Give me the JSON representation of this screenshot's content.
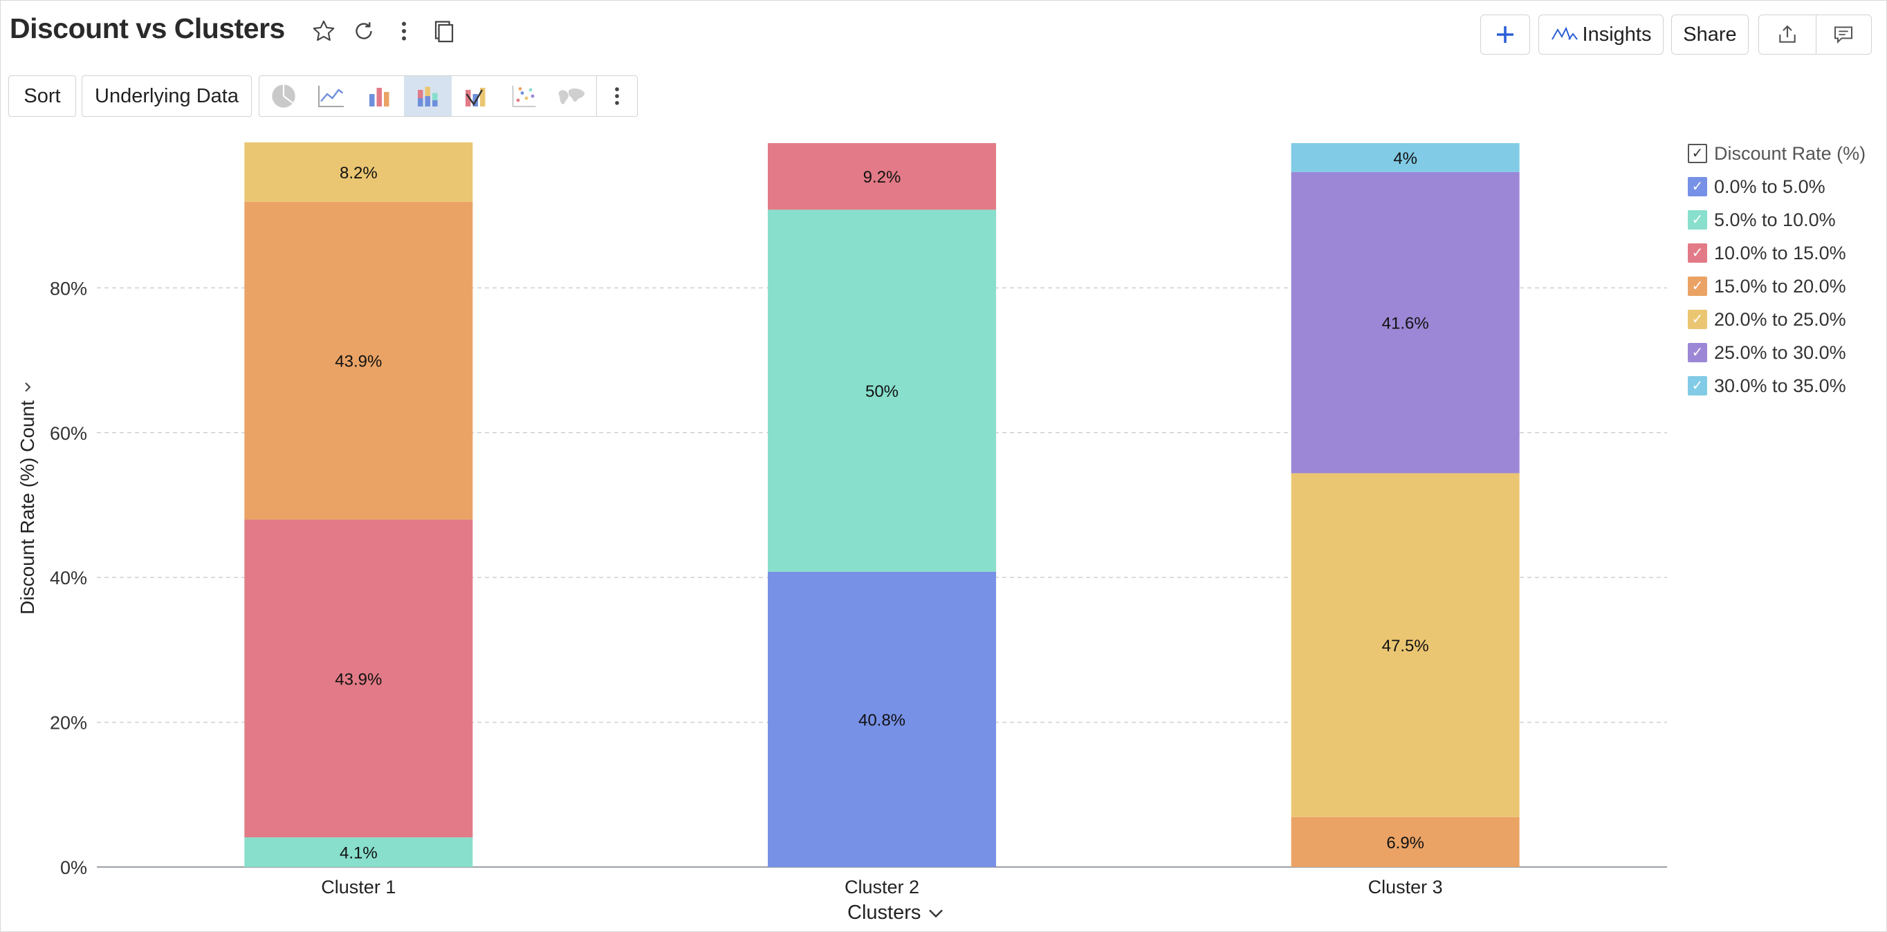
{
  "header": {
    "title": "Discount vs Clusters",
    "insights_label": "Insights",
    "share_label": "Share"
  },
  "toolbar": {
    "sort_label": "Sort",
    "underlying_label": "Underlying Data",
    "chart_types": [
      "pie-chart-icon",
      "line-chart-icon",
      "bar-chart-icon",
      "stacked-bar-chart-icon",
      "combo-chart-icon",
      "scatter-chart-icon",
      "map-chart-icon"
    ],
    "active_chart_type": "stacked-bar-chart-icon"
  },
  "legend": {
    "title": "Discount Rate (%)",
    "items": [
      {
        "label": "0.0% to 5.0%",
        "color": "#7791e6"
      },
      {
        "label": "5.0% to 10.0%",
        "color": "#88dfcc"
      },
      {
        "label": "10.0% to 15.0%",
        "color": "#e27b87"
      },
      {
        "label": "15.0% to 20.0%",
        "color": "#eaa365"
      },
      {
        "label": "20.0% to 25.0%",
        "color": "#ebc672"
      },
      {
        "label": "25.0% to 30.0%",
        "color": "#9c87d6"
      },
      {
        "label": "30.0% to 35.0%",
        "color": "#82cbe6"
      }
    ]
  },
  "chart_data": {
    "type": "bar",
    "stacked": true,
    "percent": true,
    "categories": [
      "Cluster 1",
      "Cluster 2",
      "Cluster 3"
    ],
    "xlabel": "Clusters",
    "ylabel": "Discount Rate (%) Count",
    "ylim": [
      0,
      100
    ],
    "yticks": [
      "0%",
      "20%",
      "40%",
      "60%",
      "80%"
    ],
    "grid": true,
    "legend_position": "right",
    "series": [
      {
        "name": "0.0% to 5.0%",
        "values": [
          0,
          40.8,
          0
        ]
      },
      {
        "name": "5.0% to 10.0%",
        "values": [
          4.1,
          50,
          0
        ]
      },
      {
        "name": "10.0% to 15.0%",
        "values": [
          43.9,
          9.2,
          0
        ]
      },
      {
        "name": "15.0% to 20.0%",
        "values": [
          43.9,
          0,
          6.9
        ]
      },
      {
        "name": "20.0% to 25.0%",
        "values": [
          8.2,
          0,
          47.5
        ]
      },
      {
        "name": "25.0% to 30.0%",
        "values": [
          0,
          0,
          41.6
        ]
      },
      {
        "name": "30.0% to 35.0%",
        "values": [
          0,
          0,
          4
        ]
      }
    ],
    "data_labels": [
      [
        "",
        "4.1%",
        "43.9%",
        "43.9%",
        "8.2%",
        "",
        ""
      ],
      [
        "40.8%",
        "50%",
        "9.2%",
        "",
        "",
        "",
        ""
      ],
      [
        "",
        "",
        "",
        "6.9%",
        "47.5%",
        "41.6%",
        "4%"
      ]
    ]
  }
}
